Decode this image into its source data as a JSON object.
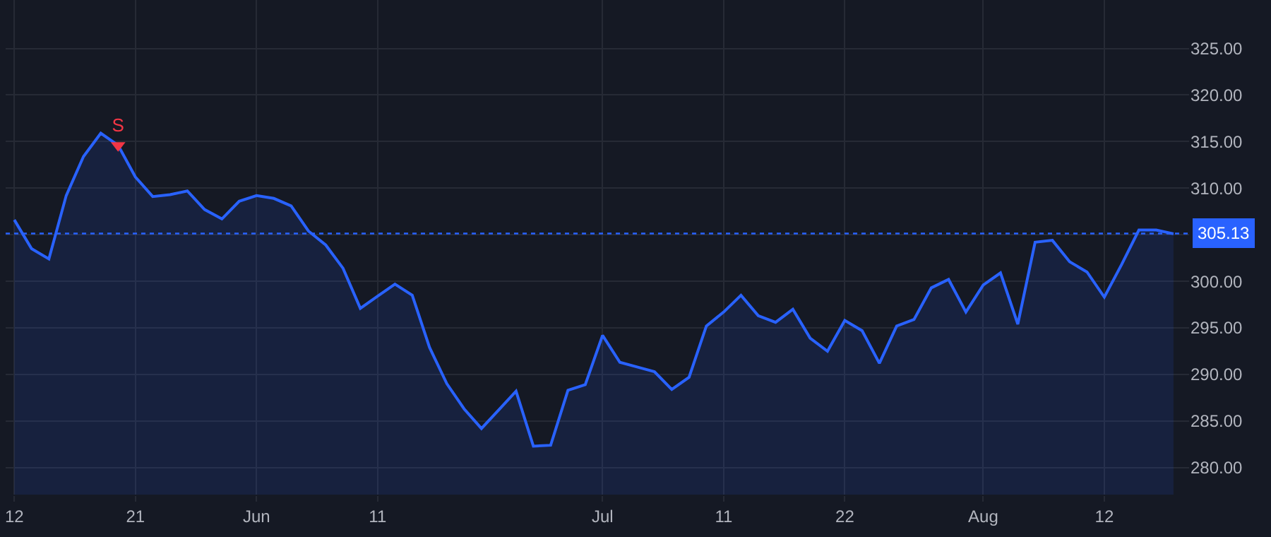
{
  "chart_data": {
    "type": "area",
    "categories": [
      "12",
      null,
      null,
      null,
      null,
      null,
      null,
      "21",
      null,
      null,
      null,
      null,
      null,
      null,
      "Jun",
      null,
      null,
      null,
      null,
      null,
      null,
      "11",
      null,
      null,
      null,
      null,
      null,
      null,
      null,
      null,
      null,
      null,
      null,
      null,
      "Jul",
      null,
      null,
      null,
      null,
      null,
      null,
      "11",
      null,
      null,
      null,
      null,
      null,
      null,
      "22",
      null,
      null,
      null,
      null,
      null,
      null,
      null,
      "Aug",
      null,
      null,
      null,
      null,
      null,
      null,
      "12",
      null,
      null,
      null,
      null
    ],
    "series": [
      {
        "color": "#2962ff",
        "values": [
          306.6,
          303.5,
          302.4,
          309.2,
          313.4,
          315.9,
          314.6,
          311.2,
          309.1,
          309.3,
          309.7,
          307.7,
          306.7,
          308.6,
          309.2,
          308.9,
          308.1,
          305.4,
          303.9,
          301.4,
          297.1,
          298.4,
          299.7,
          298.5,
          292.9,
          289.0,
          286.3,
          284.2,
          286.2,
          288.2,
          282.3,
          282.4,
          288.3,
          288.9,
          294.2,
          291.3,
          290.8,
          290.3,
          288.4,
          289.7,
          295.2,
          296.7,
          298.5,
          296.3,
          295.6,
          297.0,
          293.9,
          292.5,
          295.8,
          294.7,
          291.2,
          295.2,
          295.9,
          299.3,
          300.2,
          296.7,
          299.6,
          300.9,
          295.4,
          304.2,
          304.4,
          302.1,
          301.0,
          298.3,
          301.8,
          305.5,
          305.5,
          305.1
        ]
      },
      {
        "type": "scatter",
        "name": "S",
        "color": "#f23645",
        "marker": "triangle",
        "values": [
          null,
          null,
          null,
          null,
          null,
          null,
          314.6,
          null,
          null,
          null,
          null,
          null,
          null,
          null,
          null,
          null,
          null,
          null,
          null,
          null,
          null,
          null,
          null,
          null,
          null,
          null,
          null,
          null,
          null,
          null,
          null,
          null,
          null,
          null,
          null,
          null,
          null,
          null,
          null,
          null,
          null,
          null,
          null,
          null,
          null,
          null,
          null,
          null,
          null,
          null,
          null,
          null,
          null,
          null,
          null,
          null,
          null,
          null,
          null,
          null,
          null,
          null,
          null,
          null,
          null,
          null,
          null,
          null
        ]
      }
    ],
    "ylim": [
      277.1,
      330.2
    ],
    "yticks": [
      {
        "value": 280,
        "label": "280.00"
      },
      {
        "value": 285,
        "label": "285.00"
      },
      {
        "value": 290,
        "label": "290.00"
      },
      {
        "value": 295,
        "label": "295.00"
      },
      {
        "value": 300,
        "label": "300.00"
      },
      {
        "value": 305,
        "label": null
      },
      {
        "value": 310,
        "label": "310.00"
      },
      {
        "value": 315,
        "label": "315.00"
      },
      {
        "value": 320,
        "label": "320.00"
      },
      {
        "value": 325,
        "label": "325.00"
      }
    ],
    "ref_lines": [
      {
        "axis": "y",
        "value": 305.13,
        "label": "305.13",
        "color": "#2962ff",
        "line_style": "dotted"
      }
    ],
    "grid": true,
    "legend": false
  }
}
